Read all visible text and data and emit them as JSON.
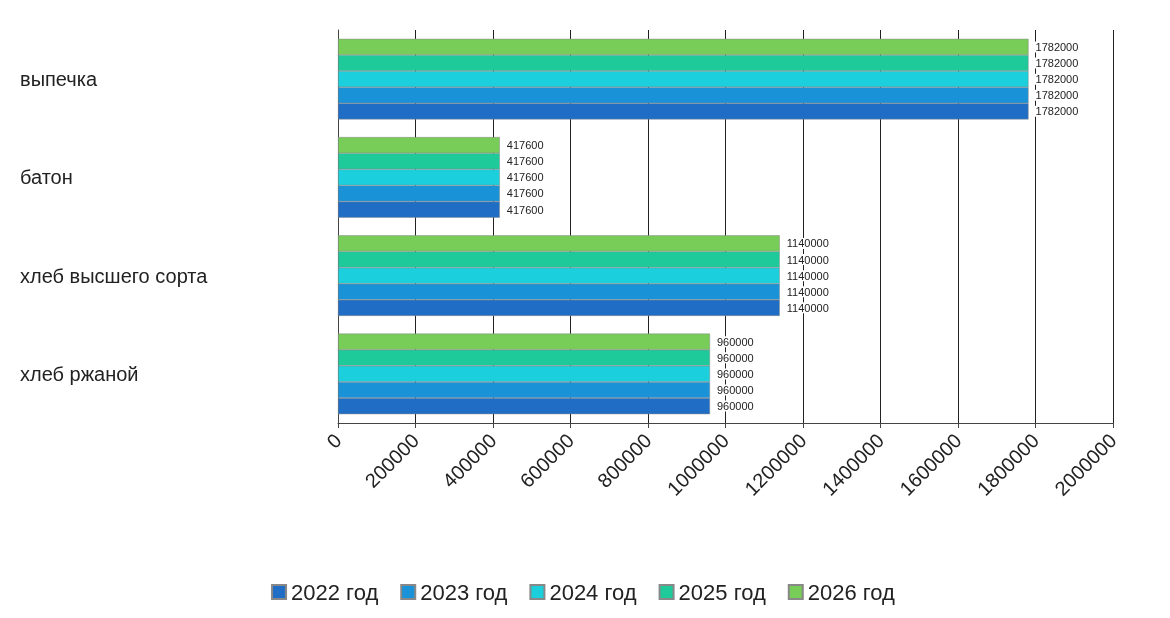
{
  "chart_data": {
    "type": "bar",
    "orientation": "horizontal",
    "categories": [
      "выпечка",
      "батон",
      "хлеб высшего сорта",
      "хлеб ржаной"
    ],
    "series": [
      {
        "name": "2022 год",
        "color": "#1f6dc4",
        "values": [
          1782000,
          417600,
          1140000,
          960000
        ]
      },
      {
        "name": "2023 год",
        "color": "#1a92d8",
        "values": [
          1782000,
          417600,
          1140000,
          960000
        ]
      },
      {
        "name": "2024 год",
        "color": "#1ccfdc",
        "values": [
          1782000,
          417600,
          1140000,
          960000
        ]
      },
      {
        "name": "2025 год",
        "color": "#1ec99a",
        "values": [
          1782000,
          417600,
          1140000,
          960000
        ]
      },
      {
        "name": "2026 год",
        "color": "#78cc58",
        "values": [
          1782000,
          417600,
          1140000,
          960000
        ]
      }
    ],
    "xlim": [
      0,
      2000000
    ],
    "xticks": [
      0,
      200000,
      400000,
      600000,
      800000,
      1000000,
      1200000,
      1400000,
      1600000,
      1800000,
      2000000
    ],
    "grid": "x",
    "legend": "bottom",
    "data_labels": true
  }
}
